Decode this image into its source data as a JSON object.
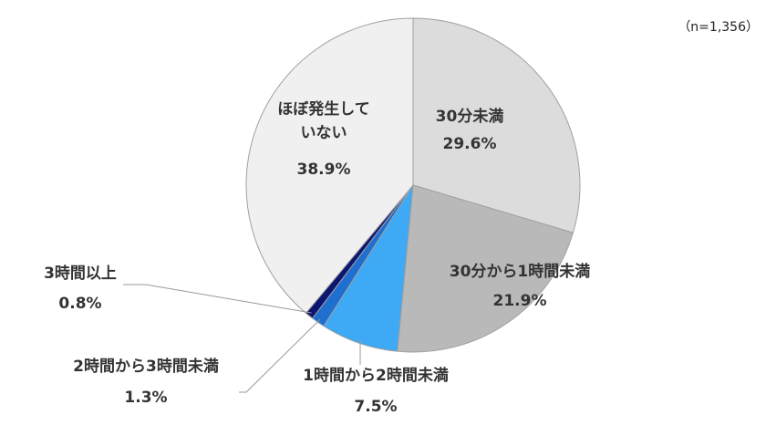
{
  "chart_data": {
    "type": "pie",
    "note": "（n=1,356）",
    "categories": [
      "30分未満",
      "30分から1時間未満",
      "1時間から2時間未満",
      "2時間から3時間未満",
      "3時間以上",
      "ほぼ発生していない"
    ],
    "values": [
      29.6,
      21.9,
      7.5,
      1.3,
      0.8,
      38.9
    ],
    "value_labels": [
      "29.6%",
      "21.9%",
      "7.5%",
      "1.3%",
      "0.8%",
      "38.9%"
    ],
    "colors": [
      "#dcdcdc",
      "#b9b9b9",
      "#3ea9f5",
      "#1f6fd0",
      "#0c1670",
      "#f0f0f0"
    ]
  }
}
